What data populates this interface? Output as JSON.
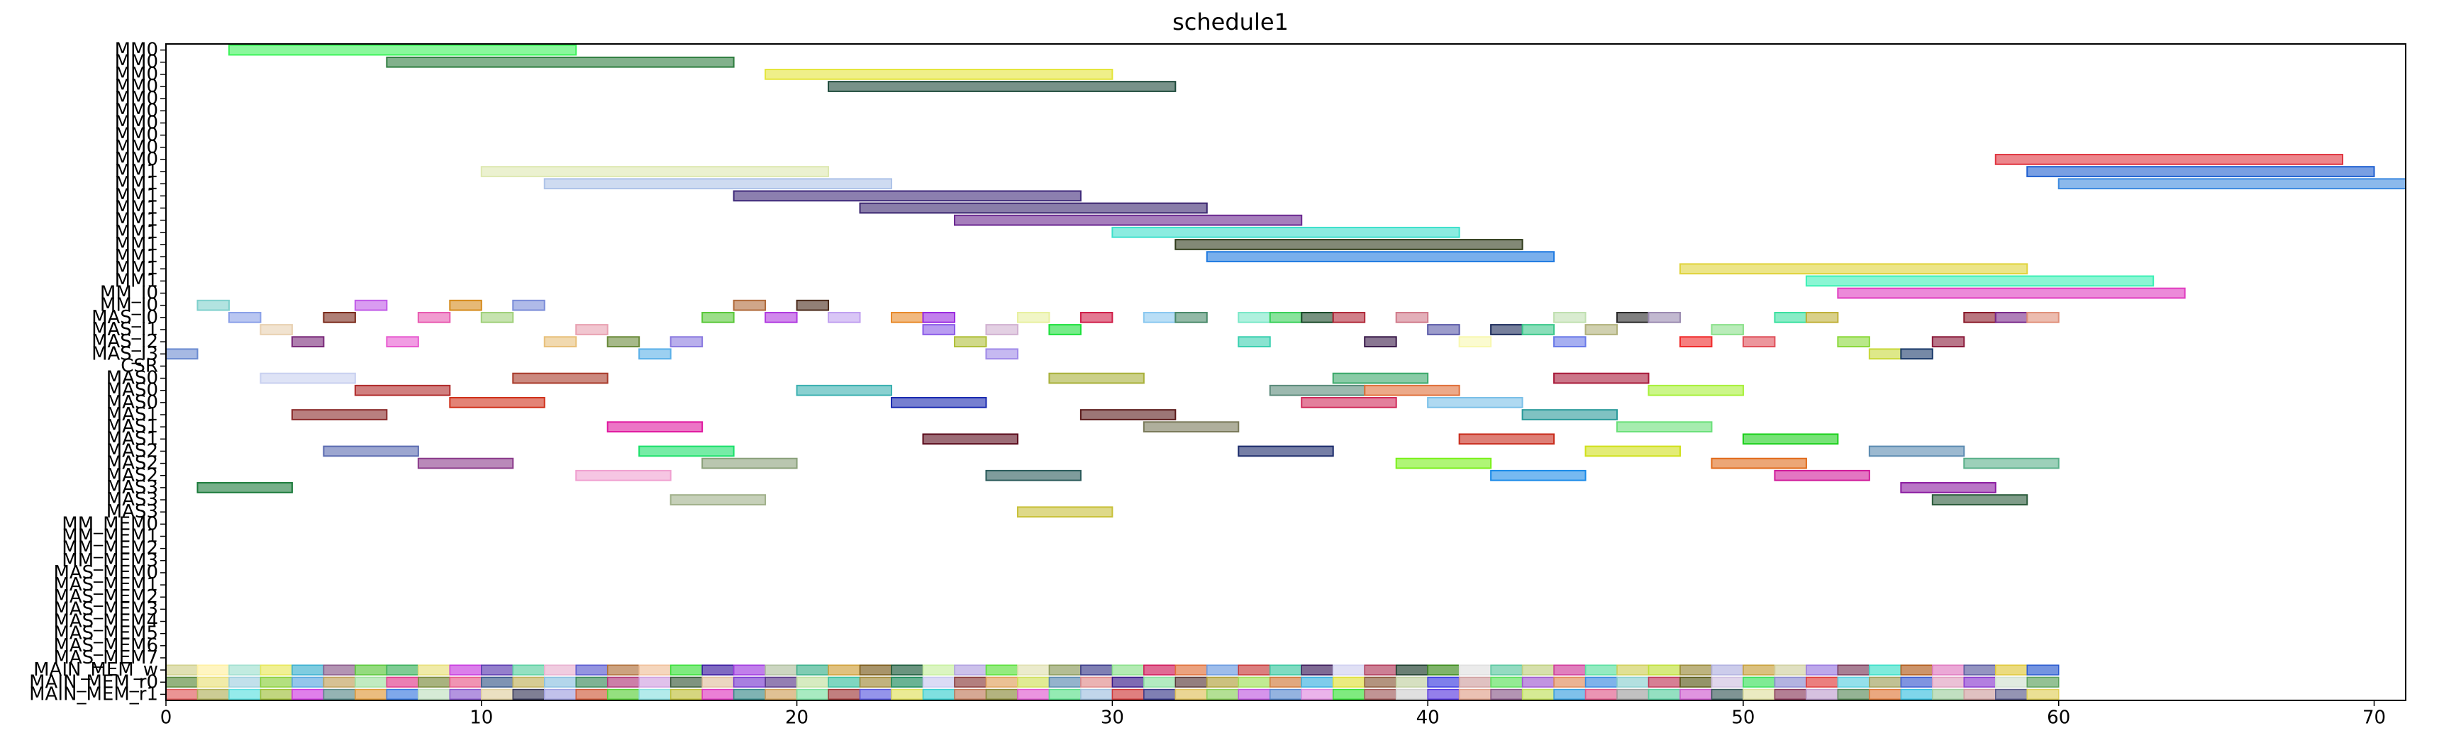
{
  "chart_data": {
    "type": "gantt",
    "title": "schedule1",
    "xlabel": "",
    "ylabel": "",
    "xlim": [
      0,
      71
    ],
    "xticks": [
      0,
      10,
      20,
      30,
      40,
      50,
      60,
      70
    ],
    "grid": false,
    "rows": [
      "MM0",
      "MM0",
      "MM0",
      "MM0",
      "MM0",
      "MM0",
      "MM0",
      "MM0",
      "MM0",
      "MM0",
      "MM1",
      "MM1",
      "MM1",
      "MM1",
      "MM1",
      "MM1",
      "MM1",
      "MM1",
      "MM1",
      "MM1",
      "MM_I0",
      "MM_I0",
      "MAS_I0",
      "MAS_I1",
      "MAS_I2",
      "MAS_I3",
      "CSR",
      "MAS0",
      "MAS0",
      "MAS0",
      "MAS1",
      "MAS1",
      "MAS1",
      "MAS2",
      "MAS2",
      "MAS2",
      "MAS3",
      "MAS3",
      "MAS3",
      "MM_MEM0",
      "MM_MEM1",
      "MM_MEM2",
      "MM_MEM3",
      "MAS_MEM0",
      "MAS_MEM1",
      "MAS_MEM2",
      "MAS_MEM3",
      "MAS_MEM4",
      "MAS_MEM5",
      "MAS_MEM6",
      "MAS_MEM7",
      "MAIN_MEM_w",
      "MAIN_MEM_r0",
      "MAIN_MEM_r1"
    ],
    "tasks": [
      {
        "row": 0,
        "start": 2,
        "end": 13,
        "color": "#3cf35a"
      },
      {
        "row": 1,
        "start": 7,
        "end": 18,
        "color": "#2e7d3f"
      },
      {
        "row": 2,
        "start": 19,
        "end": 30,
        "color": "#e4e53b"
      },
      {
        "row": 3,
        "start": 21,
        "end": 32,
        "color": "#1e4a3b"
      },
      {
        "row": 9,
        "start": 58,
        "end": 69,
        "color": "#e03540"
      },
      {
        "row": 10,
        "start": 10,
        "end": 21,
        "color": "#dde8b0"
      },
      {
        "row": 10,
        "start": 59,
        "end": 70,
        "color": "#1f5fd0"
      },
      {
        "row": 11,
        "start": 12,
        "end": 23,
        "color": "#aec3e8"
      },
      {
        "row": 11,
        "start": 60,
        "end": 71,
        "color": "#3d8ae0"
      },
      {
        "row": 12,
        "start": 18,
        "end": 29,
        "color": "#3f2a7a"
      },
      {
        "row": 13,
        "start": 22,
        "end": 33,
        "color": "#3b2670"
      },
      {
        "row": 14,
        "start": 25,
        "end": 36,
        "color": "#6b2890"
      },
      {
        "row": 15,
        "start": 30,
        "end": 41,
        "color": "#3ee0cc"
      },
      {
        "row": 16,
        "start": 32,
        "end": 43,
        "color": "#2f3b1a"
      },
      {
        "row": 17,
        "start": 33,
        "end": 44,
        "color": "#1f7ae0"
      },
      {
        "row": 18,
        "start": 48,
        "end": 59,
        "color": "#e0d33b"
      },
      {
        "row": 19,
        "start": 52,
        "end": 63,
        "color": "#3cf0b5"
      },
      {
        "row": 20,
        "start": 53,
        "end": 64,
        "color": "#e03cc0"
      },
      {
        "row": 21,
        "start": 1,
        "end": 2,
        "color": "#7fd0cc"
      },
      {
        "row": 21,
        "start": 6,
        "end": 7,
        "color": "#c05ae8"
      },
      {
        "row": 21,
        "start": 9,
        "end": 10,
        "color": "#d58a1a"
      },
      {
        "row": 21,
        "start": 11,
        "end": 12,
        "color": "#7a8cd8"
      },
      {
        "row": 21,
        "start": 18,
        "end": 19,
        "color": "#b06a3a"
      },
      {
        "row": 21,
        "start": 20,
        "end": 21,
        "color": "#4a2a1a"
      },
      {
        "row": 22,
        "start": 2,
        "end": 3,
        "color": "#8aa0e8"
      },
      {
        "row": 22,
        "start": 5,
        "end": 6,
        "color": "#7a2a1a"
      },
      {
        "row": 22,
        "start": 8,
        "end": 9,
        "color": "#e85ab0"
      },
      {
        "row": 22,
        "start": 10,
        "end": 11,
        "color": "#a0d07a"
      },
      {
        "row": 22,
        "start": 17,
        "end": 18,
        "color": "#5ac83a"
      },
      {
        "row": 22,
        "start": 19,
        "end": 20,
        "color": "#b03ae0"
      },
      {
        "row": 22,
        "start": 21,
        "end": 22,
        "color": "#c0a0f0"
      },
      {
        "row": 22,
        "start": 23,
        "end": 24,
        "color": "#e88a2a"
      },
      {
        "row": 22,
        "start": 24,
        "end": 25,
        "color": "#9a2ae0"
      },
      {
        "row": 22,
        "start": 27,
        "end": 28,
        "color": "#e8f0a0"
      },
      {
        "row": 22,
        "start": 29,
        "end": 30,
        "color": "#d0204a"
      },
      {
        "row": 22,
        "start": 31,
        "end": 32,
        "color": "#8ac8f0"
      },
      {
        "row": 22,
        "start": 32,
        "end": 33,
        "color": "#4a8a6a"
      },
      {
        "row": 22,
        "start": 34,
        "end": 35,
        "color": "#7ae8c8"
      },
      {
        "row": 22,
        "start": 35,
        "end": 36,
        "color": "#3ad05a"
      },
      {
        "row": 22,
        "start": 36,
        "end": 37,
        "color": "#1a4a2a"
      },
      {
        "row": 22,
        "start": 37,
        "end": 38,
        "color": "#b02a3a"
      },
      {
        "row": 22,
        "start": 39,
        "end": 40,
        "color": "#d07a8a"
      },
      {
        "row": 22,
        "start": 44,
        "end": 45,
        "color": "#c0e0b0"
      },
      {
        "row": 22,
        "start": 46,
        "end": 47,
        "color": "#2a2a2a"
      },
      {
        "row": 22,
        "start": 47,
        "end": 48,
        "color": "#9a8ab0"
      },
      {
        "row": 22,
        "start": 51,
        "end": 52,
        "color": "#3ae0a0"
      },
      {
        "row": 22,
        "start": 52,
        "end": 53,
        "color": "#c0b03a"
      },
      {
        "row": 22,
        "start": 57,
        "end": 58,
        "color": "#8a1a2a"
      },
      {
        "row": 22,
        "start": 58,
        "end": 59,
        "color": "#7a2a8a"
      },
      {
        "row": 22,
        "start": 59,
        "end": 60,
        "color": "#e0907a"
      },
      {
        "row": 23,
        "start": 3,
        "end": 4,
        "color": "#e8d0b0"
      },
      {
        "row": 23,
        "start": 13,
        "end": 14,
        "color": "#e8a0b0"
      },
      {
        "row": 23,
        "start": 26,
        "end": 27,
        "color": "#d0b0d0"
      },
      {
        "row": 23,
        "start": 28,
        "end": 29,
        "color": "#1ae03a"
      },
      {
        "row": 23,
        "start": 24,
        "end": 25,
        "color": "#8a5ae8"
      },
      {
        "row": 23,
        "start": 40,
        "end": 41,
        "color": "#5a5aa8"
      },
      {
        "row": 23,
        "start": 42,
        "end": 43,
        "color": "#1a2a5a"
      },
      {
        "row": 23,
        "start": 43,
        "end": 44,
        "color": "#3ac88a"
      },
      {
        "row": 23,
        "start": 45,
        "end": 46,
        "color": "#b0b07a"
      },
      {
        "row": 23,
        "start": 49,
        "end": 50,
        "color": "#8ae08a"
      },
      {
        "row": 24,
        "start": 4,
        "end": 5,
        "color": "#7a2a7a"
      },
      {
        "row": 24,
        "start": 7,
        "end": 8,
        "color": "#e85ad0"
      },
      {
        "row": 24,
        "start": 12,
        "end": 13,
        "color": "#e8c07a"
      },
      {
        "row": 24,
        "start": 14,
        "end": 15,
        "color": "#6a8a3a"
      },
      {
        "row": 24,
        "start": 16,
        "end": 17,
        "color": "#8a7ae0"
      },
      {
        "row": 24,
        "start": 25,
        "end": 26,
        "color": "#b0c03a"
      },
      {
        "row": 24,
        "start": 34,
        "end": 35,
        "color": "#3ad0b0"
      },
      {
        "row": 24,
        "start": 38,
        "end": 39,
        "color": "#3a1a4a"
      },
      {
        "row": 24,
        "start": 41,
        "end": 42,
        "color": "#f8f8b0"
      },
      {
        "row": 24,
        "start": 44,
        "end": 45,
        "color": "#6a7ae8"
      },
      {
        "row": 24,
        "start": 48,
        "end": 49,
        "color": "#f02a2a"
      },
      {
        "row": 24,
        "start": 50,
        "end": 51,
        "color": "#e0505a"
      },
      {
        "row": 24,
        "start": 53,
        "end": 54,
        "color": "#8ad83a"
      },
      {
        "row": 24,
        "start": 56,
        "end": 57,
        "color": "#8a1a3a"
      },
      {
        "row": 25,
        "start": 0,
        "end": 1,
        "color": "#6a8ad0"
      },
      {
        "row": 25,
        "start": 15,
        "end": 16,
        "color": "#5ab0e8"
      },
      {
        "row": 25,
        "start": 26,
        "end": 27,
        "color": "#a08ae8"
      },
      {
        "row": 25,
        "start": 54,
        "end": 55,
        "color": "#c8d83a"
      },
      {
        "row": 25,
        "start": 55,
        "end": 56,
        "color": "#1a3a6a"
      },
      {
        "row": 27,
        "start": 3,
        "end": 6,
        "color": "#c8d0f0"
      },
      {
        "row": 27,
        "start": 11,
        "end": 14,
        "color": "#a83a2a"
      },
      {
        "row": 27,
        "start": 28,
        "end": 31,
        "color": "#a8b03a"
      },
      {
        "row": 27,
        "start": 37,
        "end": 40,
        "color": "#3aa86a"
      },
      {
        "row": 27,
        "start": 44,
        "end": 47,
        "color": "#a81a3a"
      },
      {
        "row": 28,
        "start": 6,
        "end": 9,
        "color": "#b02a2a"
      },
      {
        "row": 28,
        "start": 20,
        "end": 23,
        "color": "#3ab0b0"
      },
      {
        "row": 28,
        "start": 35,
        "end": 38,
        "color": "#5a8a7a"
      },
      {
        "row": 28,
        "start": 38,
        "end": 41,
        "color": "#e0703a"
      },
      {
        "row": 28,
        "start": 47,
        "end": 50,
        "color": "#a8f03a"
      },
      {
        "row": 29,
        "start": 9,
        "end": 12,
        "color": "#d0301a"
      },
      {
        "row": 29,
        "start": 23,
        "end": 26,
        "color": "#1a2ab0"
      },
      {
        "row": 29,
        "start": 36,
        "end": 39,
        "color": "#d02a5a"
      },
      {
        "row": 29,
        "start": 40,
        "end": 43,
        "color": "#7ac0e8"
      },
      {
        "row": 30,
        "start": 4,
        "end": 7,
        "color": "#8a2a2a"
      },
      {
        "row": 30,
        "start": 29,
        "end": 32,
        "color": "#5a1a1a"
      },
      {
        "row": 30,
        "start": 43,
        "end": 46,
        "color": "#2a9a9a"
      },
      {
        "row": 31,
        "start": 14,
        "end": 17,
        "color": "#e01aa0"
      },
      {
        "row": 31,
        "start": 31,
        "end": 34,
        "color": "#7a7a5a"
      },
      {
        "row": 31,
        "start": 46,
        "end": 49,
        "color": "#6ae07a"
      },
      {
        "row": 32,
        "start": 24,
        "end": 27,
        "color": "#5a0a1a"
      },
      {
        "row": 32,
        "start": 41,
        "end": 44,
        "color": "#c82a1a"
      },
      {
        "row": 32,
        "start": 50,
        "end": 53,
        "color": "#1ad01a"
      },
      {
        "row": 33,
        "start": 5,
        "end": 8,
        "color": "#5a6ab0"
      },
      {
        "row": 33,
        "start": 15,
        "end": 18,
        "color": "#1ae06a"
      },
      {
        "row": 33,
        "start": 34,
        "end": 37,
        "color": "#1a2a6a"
      },
      {
        "row": 33,
        "start": 45,
        "end": 48,
        "color": "#d0e01a"
      },
      {
        "row": 33,
        "start": 54,
        "end": 57,
        "color": "#5a8ab0"
      },
      {
        "row": 34,
        "start": 8,
        "end": 11,
        "color": "#8a3a8a"
      },
      {
        "row": 34,
        "start": 17,
        "end": 20,
        "color": "#8aa07a"
      },
      {
        "row": 34,
        "start": 39,
        "end": 42,
        "color": "#7af01a"
      },
      {
        "row": 34,
        "start": 49,
        "end": 52,
        "color": "#e06a1a"
      },
      {
        "row": 34,
        "start": 57,
        "end": 60,
        "color": "#5ab08a"
      },
      {
        "row": 35,
        "start": 13,
        "end": 16,
        "color": "#f0a0d0"
      },
      {
        "row": 35,
        "start": 26,
        "end": 29,
        "color": "#2a5a5a"
      },
      {
        "row": 35,
        "start": 42,
        "end": 45,
        "color": "#1a8ae8"
      },
      {
        "row": 35,
        "start": 51,
        "end": 54,
        "color": "#d01a9a"
      },
      {
        "row": 36,
        "start": 1,
        "end": 4,
        "color": "#1a7a3a"
      },
      {
        "row": 36,
        "start": 55,
        "end": 58,
        "color": "#8a1aa0"
      },
      {
        "row": 37,
        "start": 16,
        "end": 19,
        "color": "#a0b08a"
      },
      {
        "row": 37,
        "start": 56,
        "end": 59,
        "color": "#2a5a3a"
      },
      {
        "row": 38,
        "start": 27,
        "end": 30,
        "color": "#c8c03a"
      }
    ],
    "main_mem_colors": {
      "w": [
        "#d0d08a",
        "#fff0a0",
        "#a0e0d0",
        "#e8e85a",
        "#3ab0d0",
        "#8a5a8a",
        "#5ac83a",
        "#3ab05a",
        "#e8e07a",
        "#c83ae0",
        "#5a3ab0",
        "#5ad0a0",
        "#e8b0d0",
        "#5a5ad0",
        "#b0703a",
        "#f0c09a",
        "#3ae03a",
        "#3a1aa0",
        "#a03ae0",
        "#b0c0a0",
        "#3ab08a",
        "#d0a03a",
        "#7a5a1a",
        "#1a5a3a",
        "#c8f0a0",
        "#b0a0e0",
        "#5ae03a",
        "#e0e0b0",
        "#8a9a5a",
        "#3a3a8a",
        "#8ae08a",
        "#d01a5a",
        "#e0703a",
        "#6a9ae0",
        "#c83a3a",
        "#3ac8a0",
        "#3a1a5a",
        "#d0d0f0",
        "#b03a5a",
        "#1a3a2a",
        "#3a8a1a",
        "#e0e0e0",
        "#5ac8a0",
        "#c0d080",
        "#d03a9a",
        "#5ae0a0",
        "#d0d05a",
        "#c0e03a",
        "#9a8a3a",
        "#b0b0e0",
        "#c8a03a",
        "#d0d0a0",
        "#9a7ae0",
        "#7a3a5a",
        "#3ae0c8",
        "#b05a1a",
        "#e07ac0",
        "#5a5aa0",
        "#e0c83a",
        "#2a5ad0"
      ],
      "r0": [
        "#5a8a3a",
        "#e8e07a",
        "#a0d0e0",
        "#8ad03a",
        "#5aa8e0",
        "#c0a05a",
        "#a0e0a0",
        "#e03a8a",
        "#7a8a3a",
        "#e85a8a",
        "#3a5a8a",
        "#c0b05a",
        "#8ac0e0",
        "#3a8a5a",
        "#b03a7a",
        "#d0a0e0",
        "#3a5a3a",
        "#e0c0a0",
        "#7a3ad0",
        "#5a3a8a",
        "#c0e0a0",
        "#3ac0a0",
        "#a08a3a",
        "#1a8a5a",
        "#c8c8f0",
        "#8a3a3a",
        "#e0a05a",
        "#d0e05a",
        "#5a8ab0",
        "#e08a8a",
        "#3a1a8a",
        "#8ae0a0",
        "#5a3a3a",
        "#b0a03a",
        "#a0e05a",
        "#d07a3a",
        "#3ab0e0",
        "#e0e03a",
        "#8a5a3a",
        "#c0d0a0",
        "#3a3ae0",
        "#d0a0a0",
        "#5ae05a",
        "#a05ad0",
        "#e08a5a",
        "#3a8ae0",
        "#8ad0d0",
        "#c03a5a",
        "#5a5a1a",
        "#d0c0e0",
        "#3ae05a",
        "#8a8ad0",
        "#e03a3a",
        "#5ad0e0",
        "#a0a05a",
        "#3a5ad0",
        "#e0a0c0",
        "#8a3ad0",
        "#d0e0d0",
        "#5aa05a"
      ],
      "r1": [
        "#e05a5a",
        "#b0b05a",
        "#5ae0e0",
        "#a0c03a",
        "#d03ae0",
        "#5a8a8a",
        "#e09a3a",
        "#3a7ae0",
        "#c0e0c0",
        "#8a5ad0",
        "#e0d0a0",
        "#3a3a5a",
        "#a0a0e0",
        "#d05a3a",
        "#5ad03a",
        "#8ae0e0",
        "#c0c03a",
        "#e03ac0",
        "#3a8a8a",
        "#d0a05a",
        "#7ae0a0",
        "#a03a3a",
        "#5a5ae0",
        "#e0e05a",
        "#3ad0d0",
        "#c07a5a",
        "#8a8a3a",
        "#e05ad0",
        "#5ae08a",
        "#a0c0e0",
        "#d03a3a",
        "#3a3a8a",
        "#e0c05a",
        "#8ad05a",
        "#c05ae0",
        "#5a8ad0",
        "#e08ae0",
        "#3ae03a",
        "#a05a5a",
        "#d0d0d0",
        "#5a3ae0",
        "#e0a08a",
        "#8a5a8a",
        "#c0e05a",
        "#3aa0e0",
        "#e05a8a",
        "#a0a0a0",
        "#5ad0a0",
        "#d05ad0",
        "#3a5a5a",
        "#e0e0a0",
        "#8a3a5a",
        "#c0a0d0",
        "#5a8a5a",
        "#e07a3a",
        "#3ac0e0",
        "#a0d0a0",
        "#d0a0a0",
        "#5a5a8a",
        "#e0d05a"
      ]
    }
  }
}
